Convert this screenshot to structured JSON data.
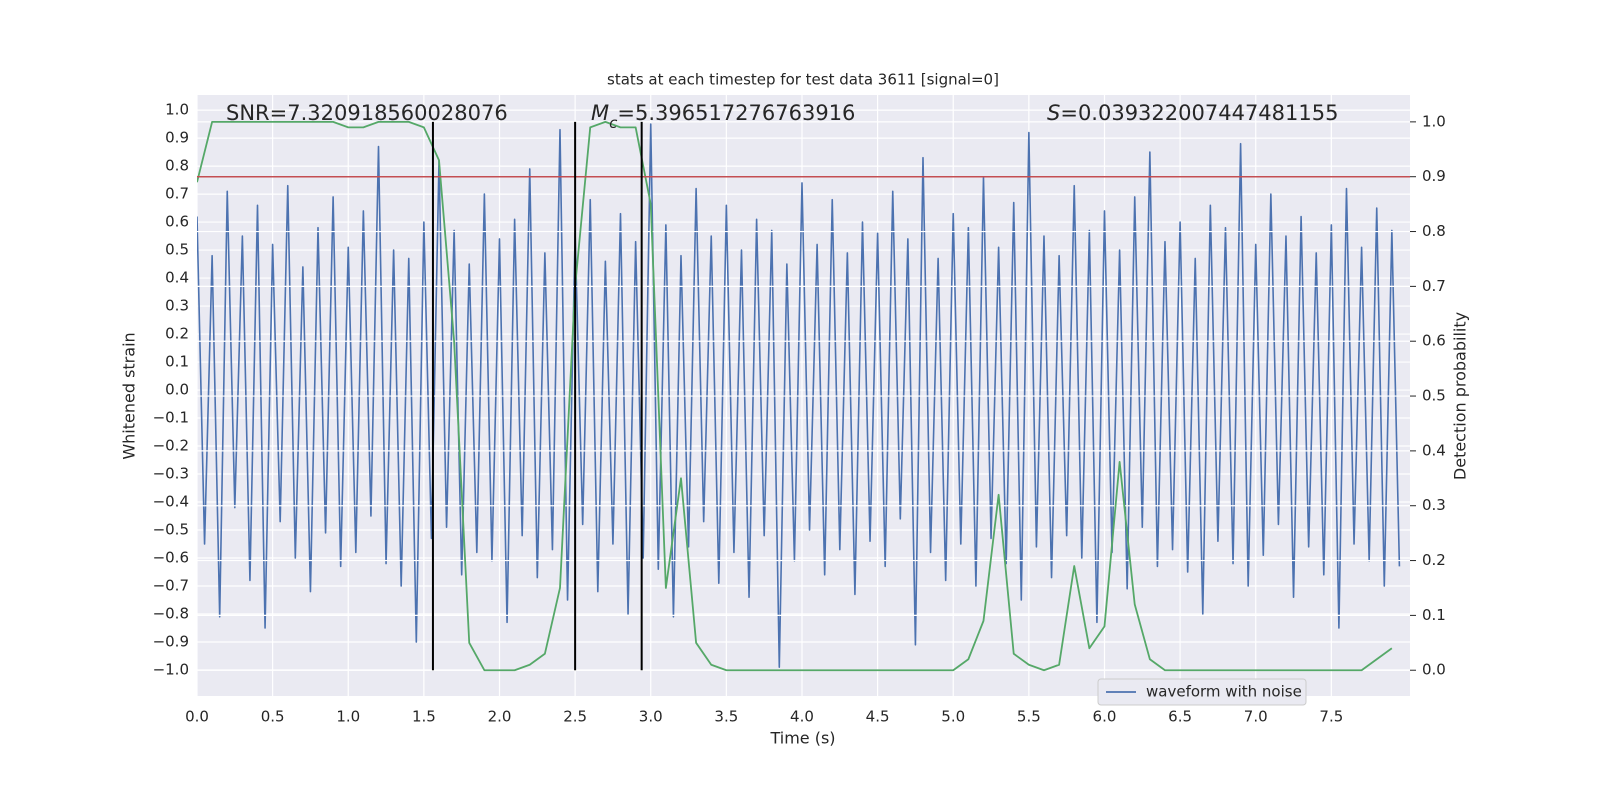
{
  "chart_data": {
    "type": "line",
    "title": "stats at each timestep for test data 3611 [signal=0]",
    "xlabel": "Time (s)",
    "ylabel": "Whitened strain",
    "y2label": "Detection probability",
    "annotations": [
      {
        "parts": [
          {
            "text": "SNR=7.320918560028076"
          }
        ]
      },
      {
        "parts": [
          {
            "text": "M",
            "italic": true
          },
          {
            "text": "c",
            "italic": true,
            "sub": true
          },
          {
            "text": "=5.396517276763916"
          }
        ]
      },
      {
        "parts": [
          {
            "text": "S",
            "italic": true
          },
          {
            "text": "=0.039322007447481155"
          }
        ]
      }
    ],
    "xlim": [
      0,
      8.02
    ],
    "ylim": [
      -1.093,
      1.054
    ],
    "y2lim": [
      -0.047,
      1.049
    ],
    "xticks": [
      {
        "value": 0,
        "label": "0.0"
      },
      {
        "value": 0.5,
        "label": "0.5"
      },
      {
        "value": 1,
        "label": "1.0"
      },
      {
        "value": 1.5,
        "label": "1.5"
      },
      {
        "value": 2,
        "label": "2.0"
      },
      {
        "value": 2.5,
        "label": "2.5"
      },
      {
        "value": 3,
        "label": "3.0"
      },
      {
        "value": 3.5,
        "label": "3.5"
      },
      {
        "value": 4,
        "label": "4.0"
      },
      {
        "value": 4.5,
        "label": "4.5"
      },
      {
        "value": 5,
        "label": "5.0"
      },
      {
        "value": 5.5,
        "label": "5.5"
      },
      {
        "value": 6,
        "label": "6.0"
      },
      {
        "value": 6.5,
        "label": "6.5"
      },
      {
        "value": 7,
        "label": "7.0"
      },
      {
        "value": 7.5,
        "label": "7.5"
      }
    ],
    "yticks": [
      {
        "value": -1,
        "label": "−1.0"
      },
      {
        "value": -0.9,
        "label": "−0.9"
      },
      {
        "value": -0.8,
        "label": "−0.8"
      },
      {
        "value": -0.7,
        "label": "−0.7"
      },
      {
        "value": -0.6,
        "label": "−0.6"
      },
      {
        "value": -0.5,
        "label": "−0.5"
      },
      {
        "value": -0.4,
        "label": "−0.4"
      },
      {
        "value": -0.3,
        "label": "−0.3"
      },
      {
        "value": -0.2,
        "label": "−0.2"
      },
      {
        "value": -0.1,
        "label": "−0.1"
      },
      {
        "value": 0,
        "label": "0.0"
      },
      {
        "value": 0.1,
        "label": "0.1"
      },
      {
        "value": 0.2,
        "label": "0.2"
      },
      {
        "value": 0.3,
        "label": "0.3"
      },
      {
        "value": 0.4,
        "label": "0.4"
      },
      {
        "value": 0.5,
        "label": "0.5"
      },
      {
        "value": 0.6,
        "label": "0.6"
      },
      {
        "value": 0.7,
        "label": "0.7"
      },
      {
        "value": 0.8,
        "label": "0.8"
      },
      {
        "value": 0.9,
        "label": "0.9"
      },
      {
        "value": 1,
        "label": "1.0"
      }
    ],
    "y2ticks": [
      {
        "value": 0,
        "label": "0.0"
      },
      {
        "value": 0.1,
        "label": "0.1"
      },
      {
        "value": 0.2,
        "label": "0.2"
      },
      {
        "value": 0.3,
        "label": "0.3"
      },
      {
        "value": 0.4,
        "label": "0.4"
      },
      {
        "value": 0.5,
        "label": "0.5"
      },
      {
        "value": 0.6,
        "label": "0.6"
      },
      {
        "value": 0.7,
        "label": "0.7"
      },
      {
        "value": 0.8,
        "label": "0.8"
      },
      {
        "value": 0.9,
        "label": "0.9"
      },
      {
        "value": 1,
        "label": "1.0"
      }
    ],
    "grid": true,
    "legend": "lower right",
    "hline": {
      "value": 0.9,
      "axis": "y2",
      "color": "#c44e52"
    },
    "vlines": {
      "x": [
        1.56,
        2.5,
        2.94
      ],
      "ymin": 0,
      "ymax": 1,
      "axis": "y2",
      "color": "#000000"
    },
    "series": [
      {
        "name": "waveform with noise",
        "color": "#4c72b0",
        "axis": "y",
        "x": [
          0,
          0.05,
          0.1,
          0.15,
          0.2,
          0.25,
          0.3,
          0.35,
          0.4,
          0.45,
          0.5,
          0.55,
          0.6,
          0.65,
          0.7,
          0.75,
          0.8,
          0.85,
          0.9,
          0.95,
          1,
          1.05,
          1.1,
          1.15,
          1.2,
          1.25,
          1.3,
          1.35,
          1.4,
          1.45,
          1.5,
          1.55,
          1.6,
          1.65,
          1.7,
          1.75,
          1.8,
          1.85,
          1.9,
          1.95,
          2,
          2.05,
          2.1,
          2.15,
          2.2,
          2.25,
          2.3,
          2.35,
          2.4,
          2.45,
          2.5,
          2.55,
          2.6,
          2.65,
          2.7,
          2.75,
          2.8,
          2.85,
          2.9,
          2.95,
          3,
          3.05,
          3.1,
          3.15,
          3.2,
          3.25,
          3.3,
          3.35,
          3.4,
          3.45,
          3.5,
          3.55,
          3.6,
          3.65,
          3.7,
          3.75,
          3.8,
          3.85,
          3.9,
          3.95,
          4,
          4.05,
          4.1,
          4.15,
          4.2,
          4.25,
          4.3,
          4.35,
          4.4,
          4.45,
          4.5,
          4.55,
          4.6,
          4.65,
          4.7,
          4.75,
          4.8,
          4.85,
          4.9,
          4.95,
          5,
          5.05,
          5.1,
          5.15,
          5.2,
          5.25,
          5.3,
          5.35,
          5.4,
          5.45,
          5.5,
          5.55,
          5.6,
          5.65,
          5.7,
          5.75,
          5.8,
          5.85,
          5.9,
          5.95,
          6,
          6.05,
          6.1,
          6.15,
          6.2,
          6.25,
          6.3,
          6.35,
          6.4,
          6.45,
          6.5,
          6.55,
          6.6,
          6.65,
          6.7,
          6.75,
          6.8,
          6.85,
          6.9,
          6.95,
          7,
          7.05,
          7.1,
          7.15,
          7.2,
          7.25,
          7.3,
          7.35,
          7.4,
          7.45,
          7.5,
          7.55,
          7.6,
          7.65,
          7.7,
          7.75,
          7.8,
          7.85,
          7.9,
          7.95
        ],
        "values": [
          0.62,
          -0.55,
          0.48,
          -0.81,
          0.71,
          -0.42,
          0.55,
          -0.68,
          0.66,
          -0.85,
          0.52,
          -0.47,
          0.73,
          -0.6,
          0.44,
          -0.72,
          0.58,
          -0.51,
          0.69,
          -0.63,
          0.51,
          -0.58,
          0.64,
          -0.45,
          0.87,
          -0.62,
          0.5,
          -0.7,
          0.47,
          -0.9,
          0.6,
          -0.53,
          0.82,
          -0.49,
          0.57,
          -0.66,
          0.45,
          -0.58,
          0.7,
          -0.61,
          0.54,
          -0.83,
          0.61,
          -0.52,
          0.79,
          -0.67,
          0.49,
          -0.57,
          0.93,
          -0.75,
          0.56,
          -0.48,
          0.68,
          -0.72,
          0.46,
          -0.55,
          0.63,
          -0.8,
          0.53,
          -0.6,
          0.95,
          -0.64,
          0.59,
          -0.81,
          0.48,
          -0.56,
          0.72,
          -0.47,
          0.55,
          -0.69,
          0.66,
          -0.58,
          0.5,
          -0.74,
          0.61,
          -0.52,
          0.57,
          -0.99,
          0.45,
          -0.61,
          0.74,
          -0.5,
          0.52,
          -0.66,
          0.68,
          -0.57,
          0.49,
          -0.73,
          0.6,
          -0.54,
          0.56,
          -0.63,
          0.71,
          -0.46,
          0.54,
          -0.91,
          0.83,
          -0.58,
          0.47,
          -0.68,
          0.63,
          -0.55,
          0.58,
          -0.7,
          0.76,
          -0.53,
          0.51,
          -0.62,
          0.67,
          -0.75,
          0.92,
          -0.56,
          0.55,
          -0.67,
          0.48,
          -0.52,
          0.73,
          -0.6,
          0.57,
          -0.83,
          0.64,
          -0.58,
          0.5,
          -0.71,
          0.69,
          -0.49,
          0.85,
          -0.63,
          0.53,
          -0.57,
          0.6,
          -0.65,
          0.47,
          -0.8,
          0.66,
          -0.54,
          0.58,
          -0.62,
          0.88,
          -0.7,
          0.52,
          -0.59,
          0.7,
          -0.48,
          0.55,
          -0.74,
          0.62,
          -0.56,
          0.49,
          -0.66,
          0.59,
          -0.85,
          0.72,
          -0.55,
          0.51,
          -0.61,
          0.65,
          -0.7,
          0.57,
          -0.63
        ]
      },
      {
        "color": "#55a868",
        "axis": "y2",
        "x": [
          0,
          0.1,
          0.2,
          0.3,
          0.4,
          0.5,
          0.6,
          0.7,
          0.8,
          0.9,
          1,
          1.1,
          1.2,
          1.3,
          1.4,
          1.5,
          1.6,
          1.7,
          1.8,
          1.9,
          2,
          2.1,
          2.2,
          2.3,
          2.4,
          2.5,
          2.6,
          2.7,
          2.8,
          2.9,
          3,
          3.1,
          3.2,
          3.3,
          3.4,
          3.5,
          3.6,
          3.7,
          3.8,
          3.9,
          4,
          4.1,
          4.2,
          4.3,
          4.4,
          4.5,
          4.6,
          4.7,
          4.8,
          4.9,
          5,
          5.1,
          5.2,
          5.3,
          5.4,
          5.5,
          5.6,
          5.7,
          5.8,
          5.9,
          6,
          6.1,
          6.2,
          6.3,
          6.4,
          6.5,
          6.6,
          6.7,
          6.8,
          6.9,
          7,
          7.1,
          7.2,
          7.3,
          7.4,
          7.5,
          7.6,
          7.7,
          7.8,
          7.9
        ],
        "values": [
          0.89,
          1,
          1,
          1,
          1,
          1,
          1,
          1,
          1,
          1,
          0.99,
          0.99,
          1,
          1,
          1,
          0.99,
          0.93,
          0.6,
          0.05,
          0,
          0,
          0,
          0.01,
          0.03,
          0.15,
          0.7,
          0.99,
          1,
          0.99,
          0.99,
          0.85,
          0.15,
          0.35,
          0.05,
          0.01,
          0,
          0,
          0,
          0,
          0,
          0,
          0,
          0,
          0,
          0,
          0,
          0,
          0,
          0,
          0,
          0,
          0.02,
          0.09,
          0.32,
          0.03,
          0.01,
          0,
          0.01,
          0.19,
          0.04,
          0.08,
          0.38,
          0.12,
          0.02,
          0,
          0,
          0,
          0,
          0,
          0,
          0,
          0,
          0,
          0,
          0,
          0,
          0,
          0,
          0.02,
          0.04
        ]
      }
    ]
  }
}
